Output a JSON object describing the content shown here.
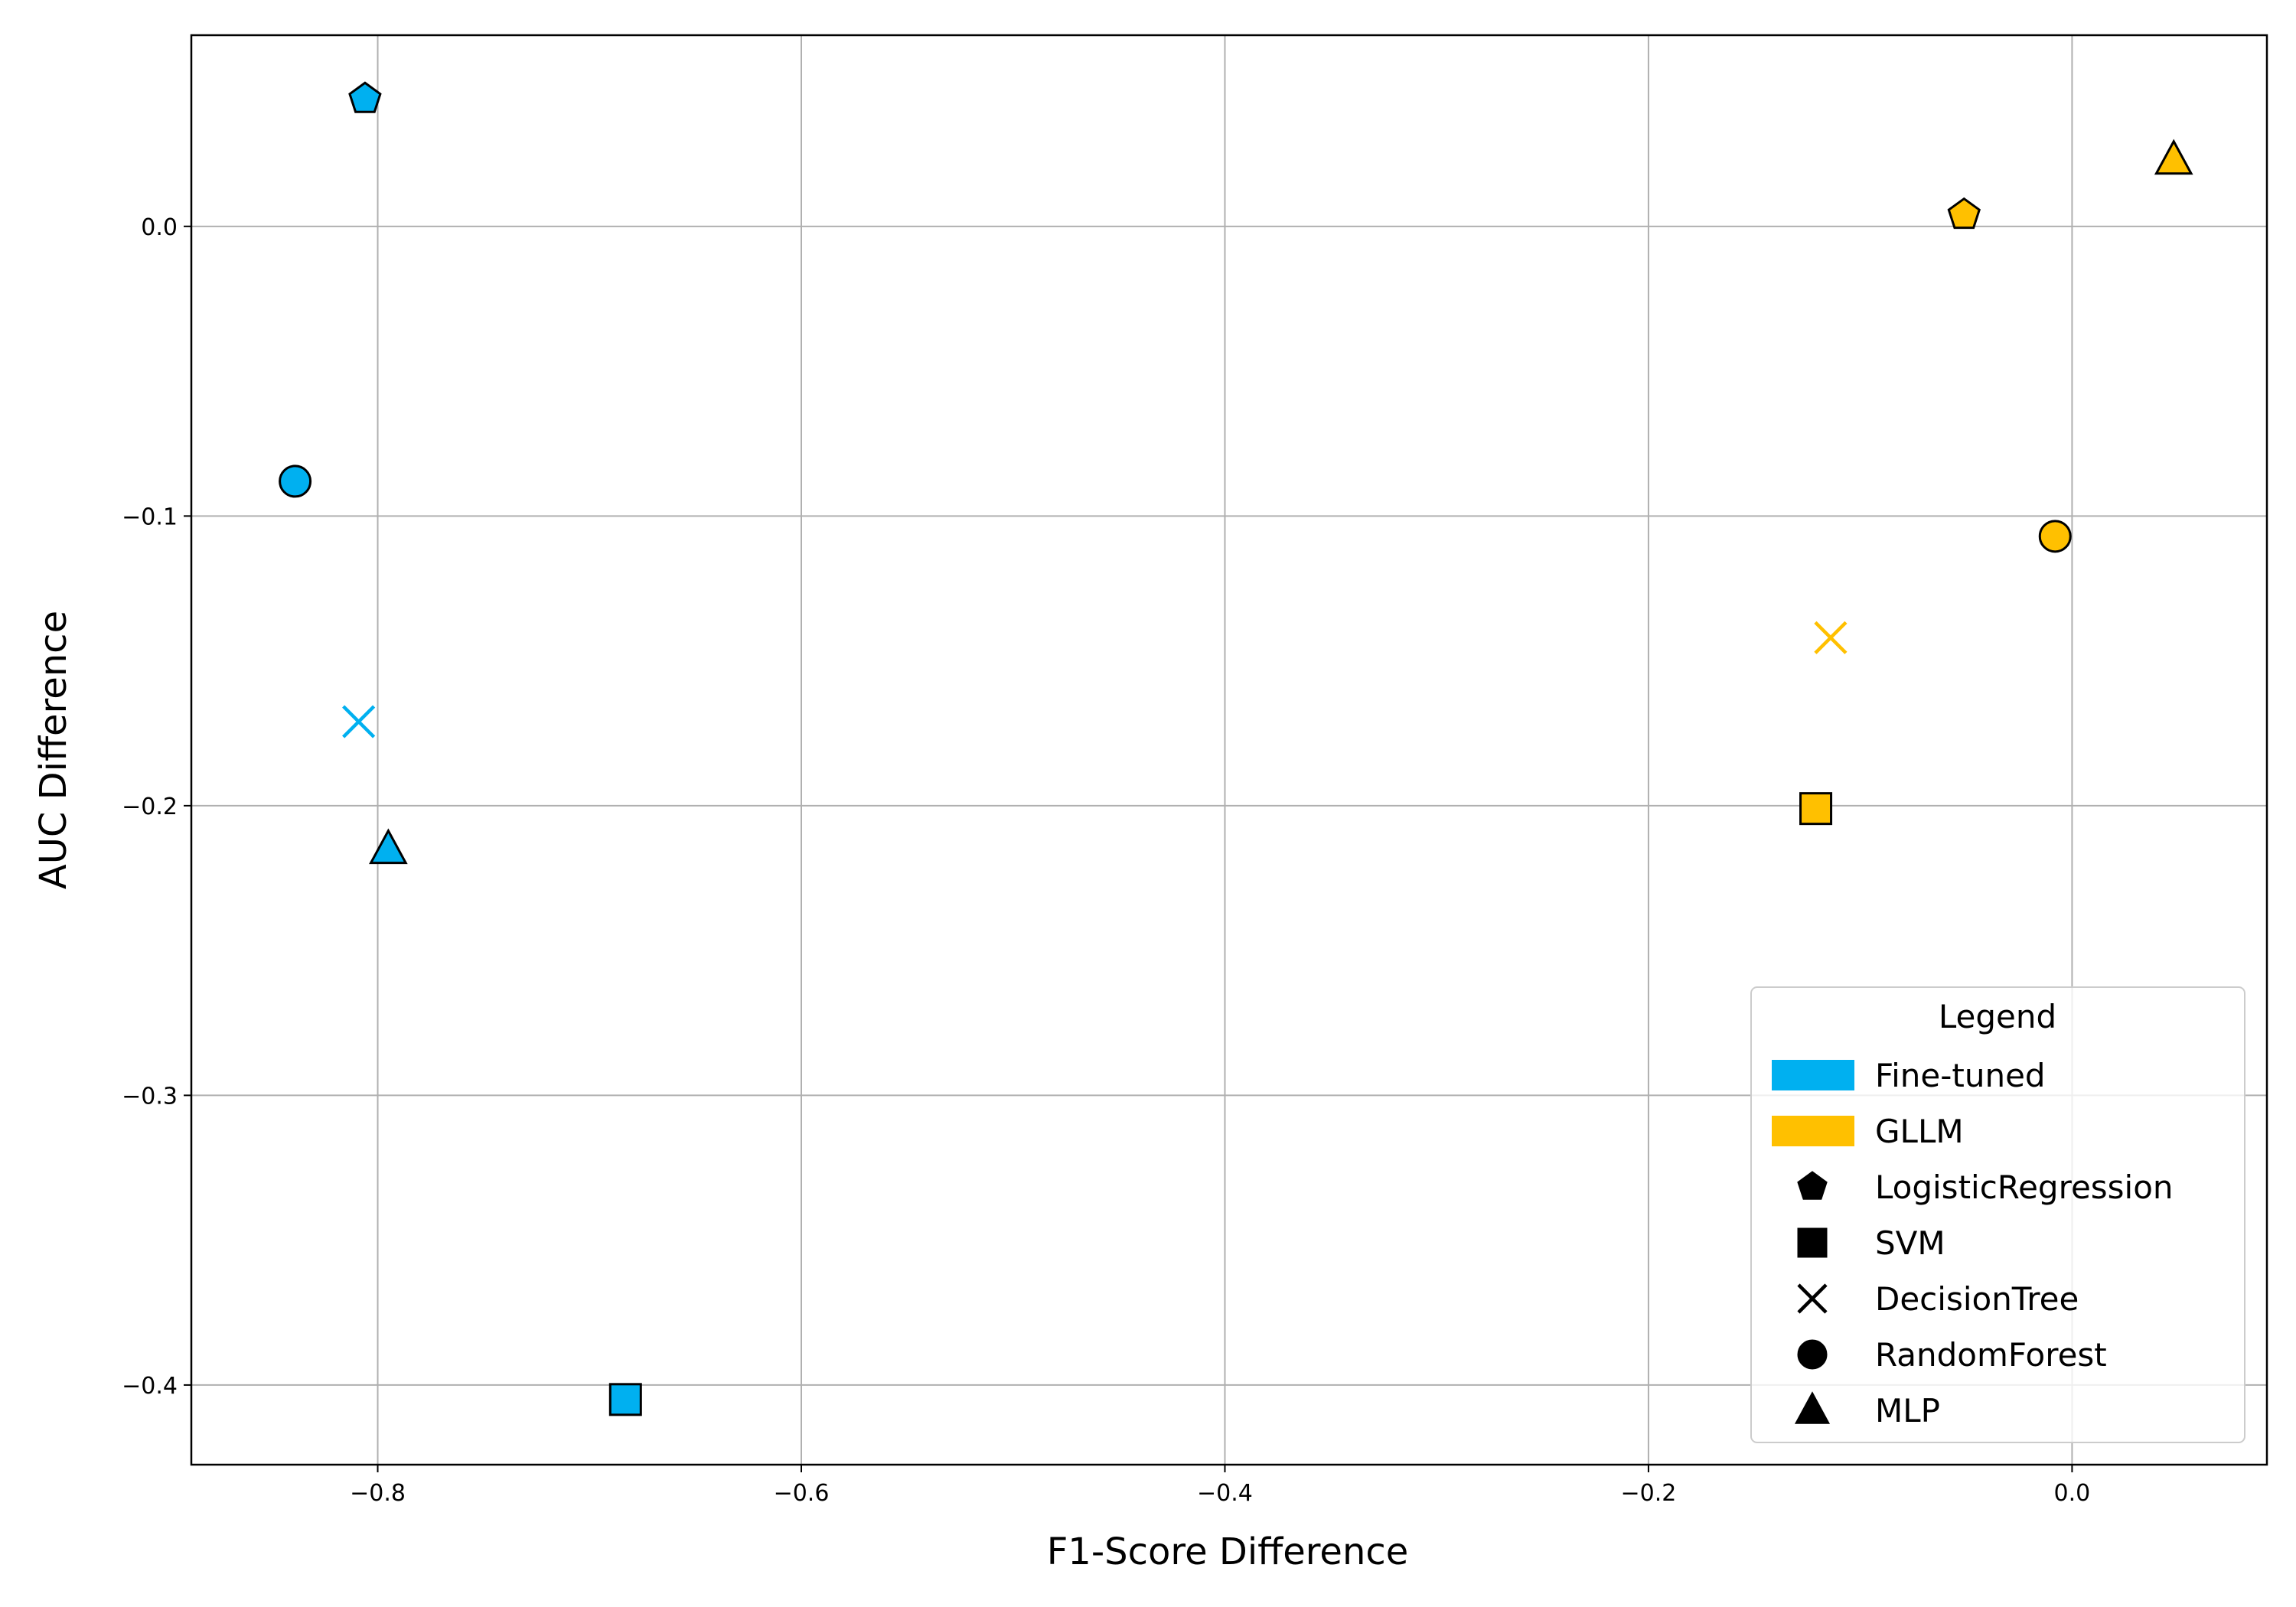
{
  "chart_data": {
    "type": "scatter",
    "xlabel": "F1-Score Difference",
    "ylabel": "AUC Difference",
    "xlim": [
      -0.888,
      0.092
    ],
    "ylim": [
      -0.4275,
      0.066
    ],
    "grid": true,
    "x_ticks": [
      {
        "value": -0.8,
        "label": "−0.8"
      },
      {
        "value": -0.6,
        "label": "−0.6"
      },
      {
        "value": -0.4,
        "label": "−0.4"
      },
      {
        "value": -0.2,
        "label": "−0.2"
      },
      {
        "value": 0.0,
        "label": "0.0"
      }
    ],
    "y_ticks": [
      {
        "value": 0.0,
        "label": "0.0"
      },
      {
        "value": -0.1,
        "label": "−0.1"
      },
      {
        "value": -0.2,
        "label": "−0.2"
      },
      {
        "value": -0.3,
        "label": "−0.3"
      },
      {
        "value": -0.4,
        "label": "−0.4"
      }
    ],
    "colors": {
      "Fine-tuned": "#00b0f0",
      "GLLM": "#ffc000"
    },
    "series": [
      {
        "group": "Fine-tuned",
        "points": [
          {
            "model": "LogisticRegression",
            "x": -0.806,
            "y": 0.044
          },
          {
            "model": "SVM",
            "x": -0.683,
            "y": -0.405
          },
          {
            "model": "DecisionTree",
            "x": -0.809,
            "y": -0.171
          },
          {
            "model": "RandomForest",
            "x": -0.839,
            "y": -0.088
          },
          {
            "model": "MLP",
            "x": -0.795,
            "y": -0.215
          }
        ]
      },
      {
        "group": "GLLM",
        "points": [
          {
            "model": "LogisticRegression",
            "x": -0.051,
            "y": 0.004
          },
          {
            "model": "SVM",
            "x": -0.121,
            "y": -0.201
          },
          {
            "model": "DecisionTree",
            "x": -0.114,
            "y": -0.142
          },
          {
            "model": "RandomForest",
            "x": -0.008,
            "y": -0.107
          },
          {
            "model": "MLP",
            "x": 0.048,
            "y": 0.023
          }
        ]
      }
    ],
    "legend": {
      "title": "Legend",
      "placement": "lower-right",
      "groups": [
        "Fine-tuned",
        "GLLM"
      ],
      "markers": [
        {
          "label": "LogisticRegression",
          "shape": "pentagon"
        },
        {
          "label": "SVM",
          "shape": "square"
        },
        {
          "label": "DecisionTree",
          "shape": "x"
        },
        {
          "label": "RandomForest",
          "shape": "circle"
        },
        {
          "label": "MLP",
          "shape": "triangle"
        }
      ]
    }
  }
}
